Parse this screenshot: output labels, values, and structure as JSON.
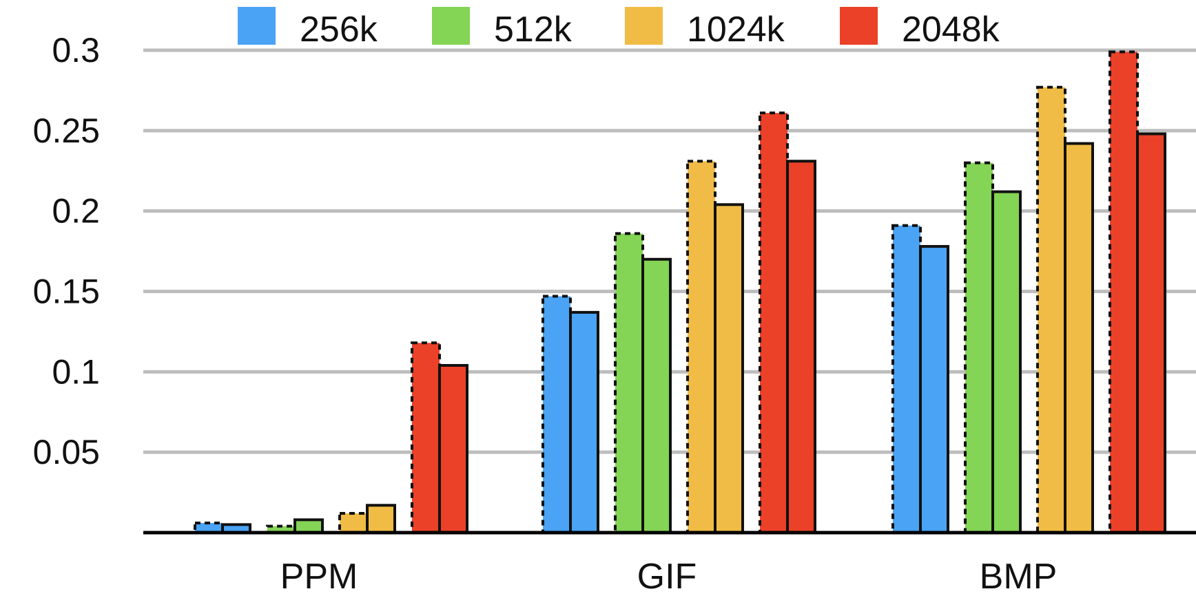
{
  "chart_data": {
    "type": "bar",
    "categories": [
      "PPM",
      "GIF",
      "BMP"
    ],
    "yticks": [
      "0.05",
      "0.1",
      "0.15",
      "0.2",
      "0.25",
      "0.3"
    ],
    "ytick_values": [
      0.05,
      0.1,
      0.15,
      0.2,
      0.25,
      0.3
    ],
    "ylim": [
      0,
      0.3
    ],
    "grid": true,
    "legend_position": "top",
    "bar_variants": [
      "dashed-outline",
      "solid-outline"
    ],
    "series": [
      {
        "name": "256k",
        "color": "#4AA3F5",
        "values_dashed": [
          0.006,
          0.147,
          0.191
        ],
        "values_solid": [
          0.005,
          0.137,
          0.178
        ]
      },
      {
        "name": "512k",
        "color": "#84D455",
        "values_dashed": [
          0.004,
          0.186,
          0.23
        ],
        "values_solid": [
          0.008,
          0.17,
          0.212
        ]
      },
      {
        "name": "1024k",
        "color": "#F0BC45",
        "values_dashed": [
          0.012,
          0.231,
          0.277
        ],
        "values_solid": [
          0.017,
          0.204,
          0.242
        ]
      },
      {
        "name": "2048k",
        "color": "#EB4128",
        "values_dashed": [
          0.118,
          0.261,
          0.299
        ],
        "values_solid": [
          0.104,
          0.231,
          0.248
        ]
      }
    ]
  }
}
